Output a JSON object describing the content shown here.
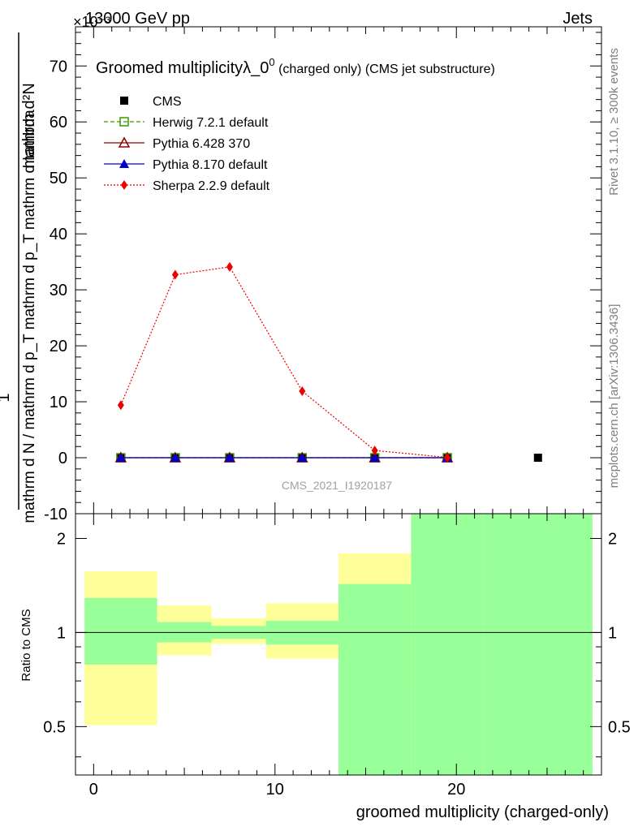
{
  "header": {
    "energy_label": "13000 GeV pp",
    "category_label": "Jets",
    "exponent_label": "×10⁻³",
    "rivet_label": "Rivet 3.1.10, ≥ 300k events",
    "mcplots_label": "mcplots.cern.ch [arXiv:1306.3436]",
    "watermark": "CMS_2021_I1920187"
  },
  "colors": {
    "cms": "#000000",
    "herwig": "#3a9a00",
    "pythia6": "#8b0000",
    "pythia8": "#0000cc",
    "sherpa": "#ee0000",
    "band_outer": "#ffff99",
    "band_inner": "#99ff99"
  },
  "chart_data": [
    {
      "type": "line",
      "panel": "main",
      "title": "Groomed multiplicity",
      "title_symbol": "λ_0",
      "title_sup": "0",
      "title_suffix": " (charged only) (CMS jet substructure)",
      "ylabel_numerator": "1",
      "ylabel_denominator": "mathrm d N / mathrm d p_T mathrm d p_T mathrm d lambda",
      "ylabel_right": "mathrm d²N",
      "xlim": [
        -1,
        28
      ],
      "ylim": [
        -10,
        77
      ],
      "y_ticks": [
        -10,
        0,
        10,
        20,
        30,
        40,
        50,
        60,
        70
      ],
      "x": [
        1.5,
        4.5,
        7.5,
        11.5,
        15.5,
        19.5,
        24.5
      ],
      "series": [
        {
          "name": "CMS",
          "key": "cms",
          "values": [
            0,
            0,
            0,
            0,
            0,
            0,
            0
          ],
          "marker": "square",
          "line": "none"
        },
        {
          "name": "Herwig 7.2.1 default",
          "key": "herwig",
          "values": [
            0,
            0,
            0,
            0,
            0,
            0,
            null
          ],
          "marker": "open-square",
          "line": "dashed"
        },
        {
          "name": "Pythia 6.428 370",
          "key": "pythia6",
          "values": [
            0,
            0,
            0,
            0,
            0,
            0,
            null
          ],
          "marker": "open-triangle",
          "line": "solid"
        },
        {
          "name": "Pythia 8.170 default",
          "key": "pythia8",
          "values": [
            0,
            0,
            0,
            0,
            0,
            0,
            null
          ],
          "marker": "triangle",
          "line": "solid"
        },
        {
          "name": "Sherpa 2.2.9 default",
          "key": "sherpa",
          "values": [
            9.4,
            32.7,
            34.1,
            11.9,
            1.3,
            0.05,
            null
          ],
          "marker": "diamond",
          "line": "dotted"
        }
      ]
    },
    {
      "type": "area",
      "panel": "ratio",
      "ylabel": "Ratio to CMS",
      "xlabel": "groomed multiplicity (charged-only)",
      "xlim": [
        -1,
        28
      ],
      "ylim": [
        0.35,
        2.4
      ],
      "x_ticks": [
        0,
        10,
        20
      ],
      "y_ticks": [
        0.5,
        1,
        2
      ],
      "bins": [
        [
          -0.5,
          3.5
        ],
        [
          3.5,
          6.5
        ],
        [
          6.5,
          9.5
        ],
        [
          9.5,
          13.5
        ],
        [
          13.5,
          17.5
        ],
        [
          17.5,
          21.5
        ],
        [
          21.5,
          27.5
        ]
      ],
      "inner_band": [
        [
          0.79,
          1.29
        ],
        [
          0.93,
          1.08
        ],
        [
          0.955,
          1.05
        ],
        [
          0.915,
          1.09
        ],
        [
          0.35,
          1.43
        ],
        [
          0.35,
          2.4
        ],
        [
          0.35,
          2.4
        ]
      ],
      "outer_band": [
        [
          0.505,
          1.57
        ],
        [
          0.845,
          1.22
        ],
        [
          0.92,
          1.11
        ],
        [
          0.825,
          1.24
        ],
        [
          0.675,
          1.79
        ],
        [
          0.35,
          2.4
        ],
        [
          0.35,
          2.4
        ]
      ]
    }
  ]
}
